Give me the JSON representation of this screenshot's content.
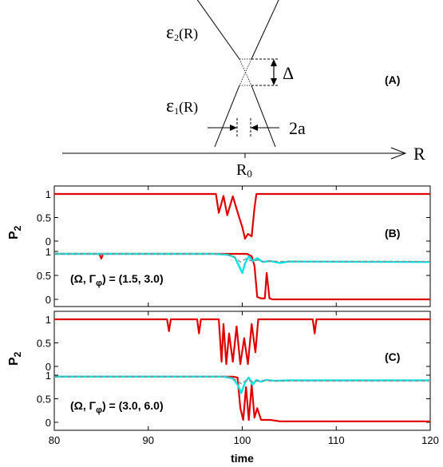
{
  "diagram": {
    "upper_label_sym": "ε",
    "upper_label_sub": "2",
    "upper_label_arg": "(R)",
    "lower_label_sym": "ε",
    "lower_label_sub": "1",
    "lower_label_arg": "(R)",
    "gap_label": "Δ",
    "width_label": "2a",
    "axis_label": "R",
    "center_label": "R",
    "center_sub": "0",
    "panel_label": "(A)"
  },
  "chart_data": [
    {
      "type": "line",
      "panel_label": "(B)",
      "ylabel": "P",
      "ylabel_sub": "2",
      "params_text": "(Ω, Γ",
      "params_sub": "φ",
      "params_value": ") = (1.5, 3.0)",
      "xlim": [
        80,
        120
      ],
      "xticks": [
        80,
        90,
        100,
        110,
        120
      ],
      "upper_yticks": [
        "1",
        "0.5",
        "0"
      ],
      "lower_yticks": [
        "1",
        "0.5",
        "0"
      ],
      "series": [
        {
          "role": "upper-red",
          "color": "#e00000",
          "x": [
            80,
            97.2,
            97.5,
            98.0,
            98.4,
            99.0,
            99.6,
            100.0,
            100.3,
            100.6,
            101.0,
            101.3,
            101.5,
            120
          ],
          "values": [
            1.0,
            1.0,
            0.6,
            0.96,
            0.55,
            0.95,
            0.55,
            0.3,
            0.05,
            0.15,
            0.1,
            0.7,
            1.0,
            1.0
          ]
        },
        {
          "role": "lower-red",
          "color": "#e00000",
          "x": [
            80,
            84.8,
            85.0,
            85.2,
            99.5,
            100.0,
            100.5,
            101.0,
            101.3,
            101.6,
            102.0,
            102.4,
            102.6,
            102.9,
            103.2,
            120
          ],
          "values": [
            0.95,
            0.95,
            0.85,
            0.95,
            0.95,
            0.95,
            0.95,
            0.9,
            0.7,
            0.05,
            0.02,
            0.02,
            0.55,
            0.02,
            0.0,
            0.0
          ]
        },
        {
          "role": "lower-cyan",
          "color": "#00e5e5",
          "x": [
            80,
            97.0,
            98.5,
            99.2,
            99.6,
            100.0,
            100.3,
            100.7,
            101.1,
            101.6,
            102.2,
            103.0,
            104.0,
            105.0,
            120
          ],
          "values": [
            0.95,
            0.95,
            0.93,
            0.88,
            0.72,
            0.55,
            0.75,
            0.9,
            0.8,
            0.86,
            0.78,
            0.8,
            0.76,
            0.79,
            0.78
          ]
        },
        {
          "role": "lower-gray-dashed",
          "color": "#8c8c8c",
          "x": [
            80,
            98.0,
            99.0,
            99.8,
            100.4,
            101.0,
            101.6,
            102.2,
            103.0,
            104.0,
            120
          ],
          "values": [
            0.95,
            0.95,
            0.9,
            0.78,
            0.85,
            0.8,
            0.82,
            0.79,
            0.8,
            0.79,
            0.79
          ]
        }
      ]
    },
    {
      "type": "line",
      "panel_label": "(C)",
      "ylabel": "P",
      "ylabel_sub": "2",
      "params_text": "(Ω, Γ",
      "params_sub": "φ",
      "params_value": ") = (3.0, 6.0)",
      "xlim": [
        80,
        120
      ],
      "xticks": [
        80,
        90,
        100,
        110,
        120
      ],
      "xtick_labels": [
        "80",
        "90",
        "100",
        "110",
        "120"
      ],
      "xlabel": "time",
      "upper_yticks": [
        "1",
        "0.5",
        "0"
      ],
      "lower_yticks": [
        "1",
        "0.5",
        "0"
      ],
      "series": [
        {
          "role": "upper-red",
          "color": "#e00000",
          "x": [
            80,
            92.0,
            92.2,
            92.4,
            95.2,
            95.4,
            95.6,
            97.5,
            97.8,
            98.0,
            98.3,
            98.6,
            99.0,
            99.4,
            99.8,
            100.2,
            100.6,
            101.0,
            101.4,
            101.7,
            102.0,
            107.5,
            107.7,
            107.9,
            120
          ],
          "values": [
            1.0,
            1.0,
            0.75,
            1.0,
            1.0,
            0.7,
            1.0,
            1.0,
            0.1,
            0.9,
            0.05,
            0.7,
            0.1,
            0.85,
            0.05,
            0.6,
            0.05,
            0.9,
            0.3,
            1.0,
            1.0,
            1.0,
            0.7,
            1.0,
            1.0
          ]
        },
        {
          "role": "lower-red",
          "color": "#e00000",
          "x": [
            80,
            99.0,
            99.5,
            99.8,
            100.1,
            100.4,
            100.7,
            101.0,
            101.3,
            101.6,
            102.0,
            103.0,
            104.0,
            120
          ],
          "values": [
            0.97,
            0.97,
            0.95,
            0.3,
            0.05,
            0.75,
            0.05,
            0.8,
            0.1,
            0.3,
            0.05,
            0.05,
            0.02,
            0.02
          ]
        },
        {
          "role": "lower-cyan",
          "color": "#00e5e5",
          "x": [
            80,
            98.0,
            99.0,
            99.5,
            99.9,
            100.3,
            100.7,
            101.1,
            101.5,
            102.0,
            102.5,
            103.5,
            105.0,
            120
          ],
          "values": [
            0.97,
            0.97,
            0.93,
            0.8,
            0.62,
            0.85,
            0.95,
            0.8,
            0.9,
            0.86,
            0.9,
            0.88,
            0.89,
            0.89
          ]
        },
        {
          "role": "lower-gray-dashed",
          "color": "#8c8c8c",
          "x": [
            80,
            98.5,
            99.3,
            99.9,
            100.5,
            101.2,
            102.0,
            103.0,
            120
          ],
          "values": [
            0.97,
            0.97,
            0.9,
            0.82,
            0.9,
            0.86,
            0.89,
            0.88,
            0.88
          ]
        }
      ]
    }
  ]
}
